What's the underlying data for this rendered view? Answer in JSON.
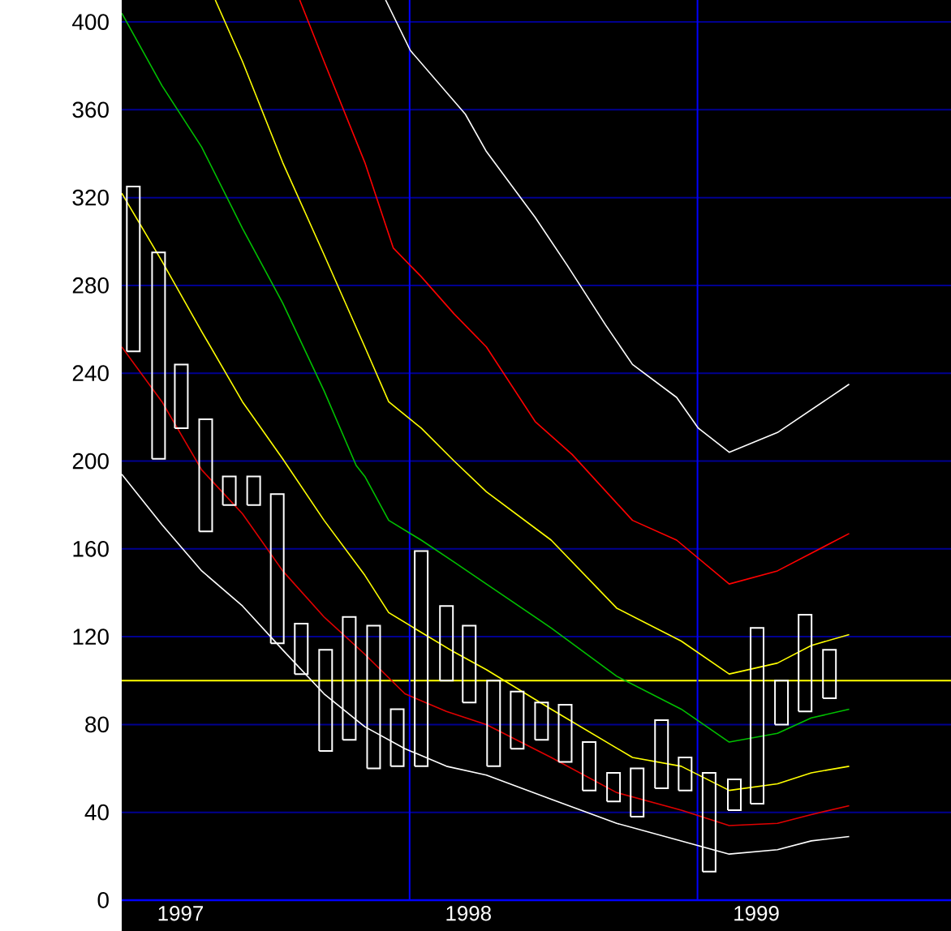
{
  "chart_data": {
    "type": "bar",
    "xlim": [
      "1997-01-01",
      "1999-11-18"
    ],
    "ylim": [
      0,
      410
    ],
    "xticks": [
      {
        "value": "1997-03-15",
        "label": "1997"
      },
      {
        "value": "1998-03-15",
        "label": "1998"
      },
      {
        "value": "1999-03-15",
        "label": "1999"
      }
    ],
    "yticks": [
      0,
      40,
      80,
      120,
      160,
      200,
      240,
      280,
      320,
      360,
      400
    ],
    "grid": "y",
    "ref_lines": [
      {
        "axis": "y",
        "value": 100,
        "color": "#ffff00"
      },
      {
        "axis": "x",
        "value": "1998-01-01",
        "color": "#0000ff"
      },
      {
        "axis": "x",
        "value": "1999-01-01",
        "color": "#0000ff"
      }
    ],
    "series": [
      {
        "color": "#ffffff",
        "x": [
          "1997-01-16",
          "1997-02-16",
          "1997-03-16",
          "1997-04-16",
          "1997-05-16",
          "1997-06-16",
          "1997-07-16",
          "1997-08-16",
          "1997-09-16",
          "1997-10-16",
          "1997-11-16",
          "1997-12-16",
          "1998-01-16",
          "1998-02-16",
          "1998-03-16",
          "1998-04-16",
          "1998-05-16",
          "1998-06-16",
          "1998-07-16",
          "1998-08-16",
          "1998-09-16",
          "1998-10-16",
          "1998-11-16",
          "1998-12-16",
          "1999-01-16",
          "1999-02-16",
          "1999-03-16",
          "1999-04-16",
          "1999-05-16",
          "1999-06-16"
        ],
        "base": [
          250,
          201,
          215,
          168,
          180,
          180,
          117,
          103,
          68,
          73,
          60,
          61,
          61,
          100,
          90,
          61,
          69,
          73,
          63,
          50,
          45,
          38,
          51,
          50,
          13,
          41,
          44,
          80,
          86,
          92
        ],
        "values": [
          75,
          94,
          29,
          51,
          13,
          13,
          68,
          23,
          46,
          56,
          65,
          26,
          98,
          34,
          35,
          39,
          26,
          17,
          26,
          22,
          13,
          22,
          31,
          15,
          45,
          14,
          80,
          20,
          44,
          22
        ]
      },
      {
        "type": "line",
        "color": "#ffffff",
        "x": [
          "1997-12-01",
          "1998-01-02",
          "1998-03-11",
          "1998-04-07",
          "1998-06-08",
          "1998-07-19",
          "1998-09-06",
          "1998-10-10",
          "1998-12-05",
          "1999-01-02",
          "1999-02-10",
          "1999-04-11",
          "1999-07-11"
        ],
        "values": [
          410,
          387,
          358,
          341,
          311,
          289,
          262,
          244,
          229,
          215,
          204,
          213,
          235
        ]
      },
      {
        "type": "line",
        "color": "#ff0000",
        "x": [
          "1997-08-14",
          "1997-09-14",
          "1997-11-05",
          "1997-12-11",
          "1998-01-16",
          "1998-02-25",
          "1998-04-07",
          "1998-06-08",
          "1998-07-25",
          "1998-10-10",
          "1998-12-05",
          "1999-02-10",
          "1999-04-11",
          "1999-07-11"
        ],
        "values": [
          410,
          382,
          336,
          297,
          284,
          267,
          252,
          218,
          203,
          173,
          164,
          144,
          150,
          167
        ]
      },
      {
        "type": "line",
        "color": "#ffff00",
        "x": [
          "1997-04-28",
          "1997-06-02",
          "1997-07-23",
          "1997-09-14",
          "1997-11-05",
          "1997-12-05",
          "1998-01-16",
          "1998-02-25",
          "1998-04-07",
          "1998-06-28",
          "1998-09-20",
          "1998-12-11",
          "1999-02-10",
          "1999-04-11",
          "1999-05-24",
          "1999-07-11"
        ],
        "values": [
          410,
          382,
          336,
          294,
          252,
          227,
          215,
          200,
          186,
          164,
          133,
          118,
          103,
          108,
          116,
          121
        ]
      },
      {
        "type": "line",
        "color": "#00c000",
        "x": [
          "1997-01-01",
          "1997-02-20",
          "1997-04-11",
          "1997-06-02",
          "1997-07-23",
          "1997-09-14",
          "1997-10-25",
          "1997-11-05",
          "1997-12-05",
          "1998-01-16",
          "1998-02-25",
          "1998-04-07",
          "1998-06-28",
          "1998-09-20",
          "1998-12-11",
          "1999-02-10",
          "1999-04-11",
          "1999-05-24",
          "1999-07-11"
        ],
        "values": [
          404,
          371,
          343,
          306,
          272,
          232,
          198,
          193,
          173,
          164,
          154,
          144,
          124,
          102,
          87,
          72,
          76,
          83,
          87
        ]
      },
      {
        "type": "line",
        "color": "#ffff00",
        "x": [
          "1997-01-01",
          "1997-02-20",
          "1997-04-11",
          "1997-06-02",
          "1997-07-23",
          "1997-09-14",
          "1997-11-05",
          "1997-12-05",
          "1998-01-16",
          "1998-02-25",
          "1998-04-07",
          "1998-06-28",
          "1998-10-10",
          "1998-12-11",
          "1999-02-10",
          "1999-04-11",
          "1999-05-24",
          "1999-07-11"
        ],
        "values": [
          322,
          291,
          259,
          227,
          201,
          173,
          148,
          131,
          122,
          113,
          105,
          87,
          65,
          61,
          50,
          53,
          58,
          61
        ]
      },
      {
        "type": "line",
        "color": "#e00000",
        "x": [
          "1997-01-01",
          "1997-02-20",
          "1997-04-11",
          "1997-06-02",
          "1997-07-23",
          "1997-09-14",
          "1997-11-05",
          "1997-12-26",
          "1998-02-16",
          "1998-04-07",
          "1998-06-28",
          "1998-09-20",
          "1998-12-11",
          "1999-02-10",
          "1999-04-11",
          "1999-05-24",
          "1999-07-11"
        ],
        "values": [
          252,
          227,
          196,
          176,
          150,
          129,
          112,
          94,
          86,
          80,
          65,
          49,
          41,
          34,
          35,
          39,
          43
        ]
      },
      {
        "type": "line",
        "color": "#ffffff",
        "x": [
          "1997-01-01",
          "1997-02-20",
          "1997-04-11",
          "1997-06-02",
          "1997-07-23",
          "1997-09-14",
          "1997-11-05",
          "1997-12-26",
          "1998-02-16",
          "1998-04-07",
          "1998-06-28",
          "1998-09-20",
          "1998-12-11",
          "1999-02-10",
          "1999-04-11",
          "1999-05-24",
          "1999-07-11"
        ],
        "values": [
          194,
          171,
          150,
          134,
          114,
          94,
          79,
          69,
          61,
          57,
          46,
          35,
          27,
          21,
          23,
          27,
          29
        ]
      }
    ]
  }
}
